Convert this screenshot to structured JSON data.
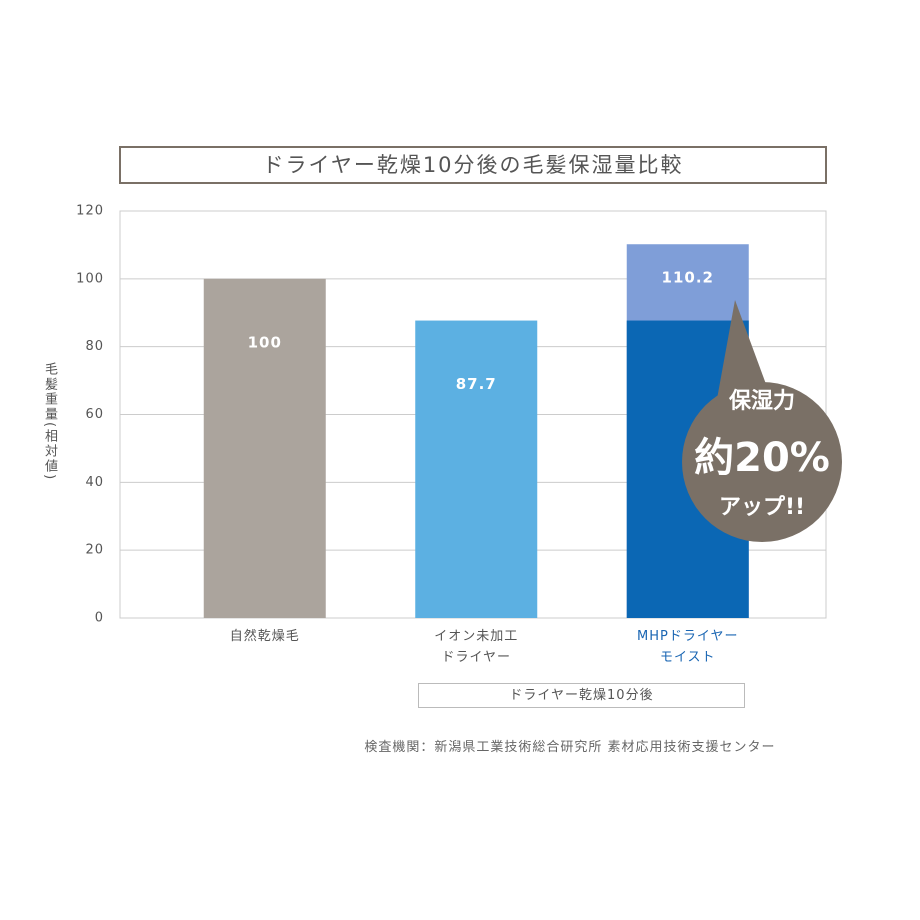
{
  "chart_data": {
    "type": "bar",
    "title": "ドライヤー乾燥10分後の毛髪保湿量比較",
    "y_label": "毛髪重量(相対値)",
    "categories": [
      "自然乾燥毛",
      "イオン未加工\nドライヤー",
      "MHPドライヤー\nモイスト"
    ],
    "values": [
      100,
      87.7,
      110.2
    ],
    "colors": [
      "#aba49d",
      "#5cb0e2",
      "#0b67b4"
    ],
    "increase_color": "#7f9ed8",
    "label_colors": [
      "#555555",
      "#555555",
      "#1a66b3"
    ],
    "ylim": [
      0,
      120
    ],
    "yticks": [
      0,
      20,
      40,
      60,
      80,
      100,
      120
    ],
    "grid": true,
    "annotation": [
      "保湿力",
      "約20%",
      "アップ!!"
    ],
    "annotation_color": "#7a7066",
    "note": "ドライヤー乾燥10分後",
    "source": "検査機関：新潟県工業技術総合研究所 素材応用技術支援センター"
  }
}
